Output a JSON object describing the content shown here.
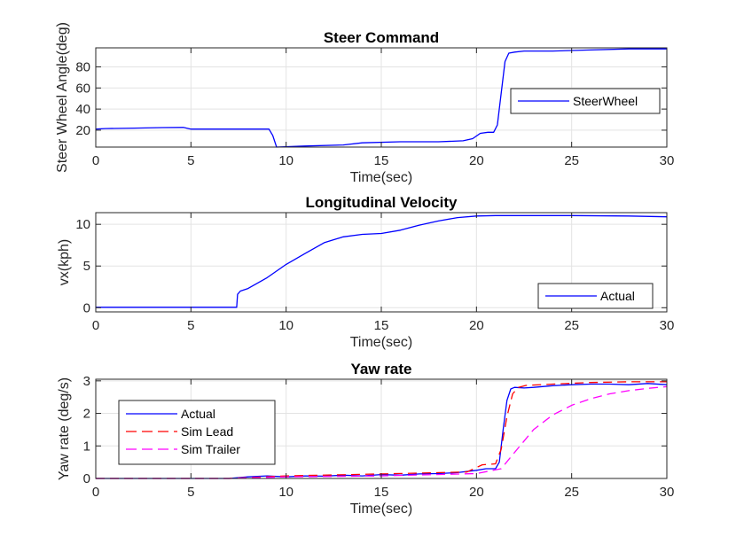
{
  "chart_data": [
    {
      "type": "line",
      "title": "Steer Command",
      "xlabel": "Time(sec)",
      "ylabel": "Steer Wheel Angle(deg)",
      "xlim": [
        0,
        30
      ],
      "ylim": [
        4,
        98
      ],
      "xticks": [
        0,
        5,
        10,
        15,
        20,
        25,
        30
      ],
      "yticks": [
        20,
        40,
        60,
        80
      ],
      "grid": true,
      "legend_position": "right",
      "series": [
        {
          "name": "SteerWheel",
          "color": "#0000ff",
          "style": "solid",
          "x": [
            0,
            0.5,
            2,
            3.5,
            4.6,
            5,
            7,
            9.1,
            9.3,
            9.5,
            11,
            13,
            14,
            16,
            18,
            19.3,
            19.8,
            20.2,
            20.6,
            20.9,
            21.1,
            21.3,
            21.5,
            21.7,
            22,
            22.5,
            24,
            26,
            28,
            30
          ],
          "y": [
            21,
            21.5,
            22,
            22.5,
            22.6,
            21,
            21,
            21,
            15,
            4,
            5,
            6,
            8,
            9,
            9,
            10,
            12,
            17,
            18,
            18,
            25,
            55,
            85,
            93,
            94,
            95,
            95,
            96,
            97,
            97
          ]
        }
      ]
    },
    {
      "type": "line",
      "title": "Longitudinal Velocity",
      "xlabel": "Time(sec)",
      "ylabel": "vx(kph)",
      "xlim": [
        0,
        30
      ],
      "ylim": [
        -0.5,
        11.4
      ],
      "xticks": [
        0,
        5,
        10,
        15,
        20,
        25,
        30
      ],
      "yticks": [
        0,
        5,
        10
      ],
      "grid": true,
      "legend_position": "bottom-right",
      "series": [
        {
          "name": "Actual",
          "color": "#0000ff",
          "style": "solid",
          "x": [
            0,
            3,
            6,
            7.4,
            7.45,
            7.6,
            8,
            9,
            10,
            11,
            12,
            13,
            14,
            15,
            16,
            17,
            18,
            19,
            20,
            21,
            22,
            25,
            28,
            30
          ],
          "y": [
            0.05,
            0.05,
            0.05,
            0.05,
            1.6,
            2,
            2.3,
            3.6,
            5.2,
            6.5,
            7.8,
            8.5,
            8.8,
            8.9,
            9.3,
            9.9,
            10.4,
            10.8,
            11,
            11.05,
            11.05,
            11.05,
            11,
            10.9
          ]
        }
      ]
    },
    {
      "type": "line",
      "title": "Yaw rate",
      "xlabel": "Time(sec)",
      "ylabel": "Yaw rate (deg/s)",
      "xlim": [
        0,
        30
      ],
      "ylim": [
        0,
        3.05
      ],
      "xticks": [
        0,
        5,
        10,
        15,
        20,
        25,
        30
      ],
      "yticks": [
        0,
        1,
        2,
        3
      ],
      "grid": true,
      "legend_position": "left",
      "series": [
        {
          "name": "Actual",
          "color": "#0000ff",
          "style": "solid",
          "x": [
            0,
            7,
            8,
            9,
            10,
            11,
            12,
            13,
            14,
            15,
            16,
            17,
            18,
            19,
            20,
            20.5,
            21,
            21.2,
            21.4,
            21.6,
            21.8,
            22,
            22.5,
            23,
            24,
            25,
            26,
            27,
            28,
            29,
            30
          ],
          "y": [
            0,
            0,
            0.05,
            0.08,
            0.05,
            0.08,
            0.07,
            0.1,
            0.08,
            0.12,
            0.1,
            0.14,
            0.15,
            0.18,
            0.25,
            0.3,
            0.3,
            0.5,
            1.5,
            2.4,
            2.75,
            2.8,
            2.78,
            2.8,
            2.85,
            2.88,
            2.9,
            2.9,
            2.88,
            2.92,
            2.88
          ]
        },
        {
          "name": "Sim Lead",
          "color": "#ff0000",
          "style": "dashed",
          "x": [
            0,
            7,
            10,
            15,
            19.5,
            20.3,
            21,
            21.3,
            21.6,
            21.9,
            22.2,
            22.6,
            24,
            26,
            28,
            30
          ],
          "y": [
            0,
            0,
            0.08,
            0.14,
            0.2,
            0.42,
            0.45,
            0.9,
            1.9,
            2.6,
            2.8,
            2.86,
            2.9,
            2.95,
            2.97,
            2.97
          ]
        },
        {
          "name": "Sim Trailer",
          "color": "#ff00ff",
          "style": "dashed",
          "x": [
            0,
            7,
            10,
            15,
            20,
            21.3,
            22,
            23,
            24,
            25,
            26,
            27,
            28,
            29,
            30
          ],
          "y": [
            0,
            0,
            0.05,
            0.08,
            0.15,
            0.3,
            0.8,
            1.5,
            1.95,
            2.25,
            2.45,
            2.6,
            2.7,
            2.77,
            2.82
          ]
        }
      ]
    }
  ]
}
